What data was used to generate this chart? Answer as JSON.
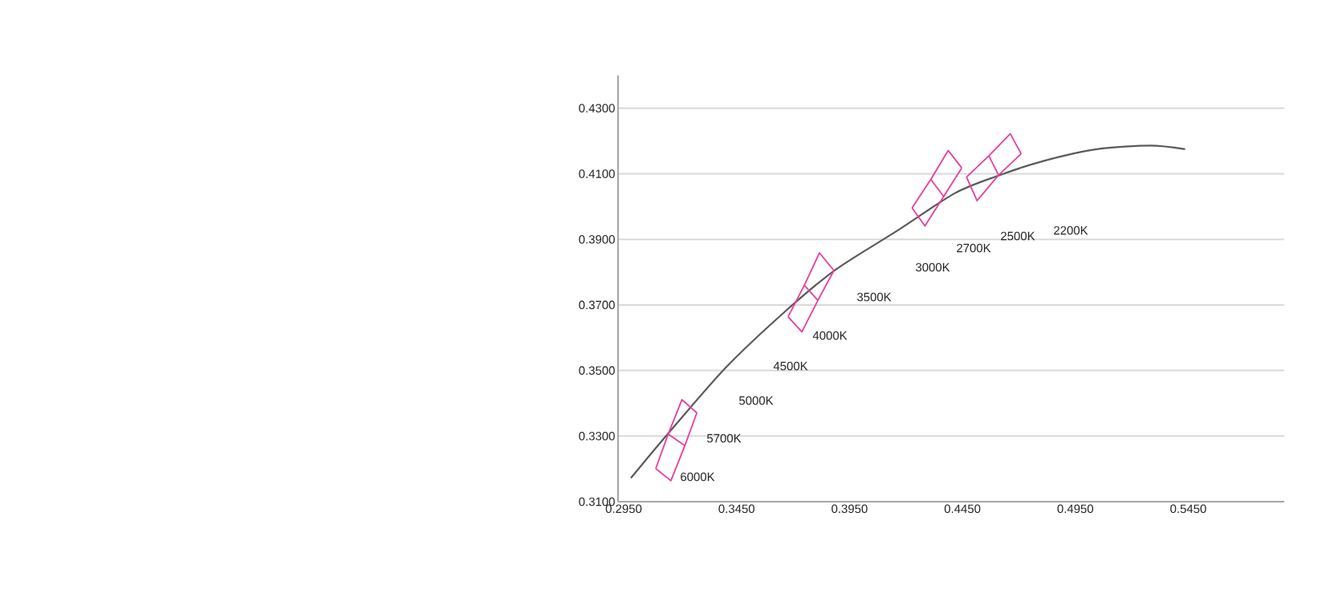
{
  "chart_data": {
    "type": "line",
    "xlim": [
      0.2925,
      0.5875
    ],
    "ylim": [
      0.31,
      0.44
    ],
    "xticks": [
      {
        "value": 0.295,
        "label": "0.2950"
      },
      {
        "value": 0.345,
        "label": "0.3450"
      },
      {
        "value": 0.395,
        "label": "0.3950"
      },
      {
        "value": 0.445,
        "label": "0.4450"
      },
      {
        "value": 0.495,
        "label": "0.4950"
      },
      {
        "value": 0.545,
        "label": "0.5450"
      }
    ],
    "yticks": [
      {
        "value": 0.31,
        "label": "0.3100"
      },
      {
        "value": 0.33,
        "label": "0.3300"
      },
      {
        "value": 0.35,
        "label": "0.3500"
      },
      {
        "value": 0.37,
        "label": "0.3700"
      },
      {
        "value": 0.39,
        "label": "0.3900"
      },
      {
        "value": 0.41,
        "label": "0.4100"
      },
      {
        "value": 0.43,
        "label": "0.4300"
      }
    ],
    "grid": "y",
    "marker": "none",
    "line_style": "solid",
    "series": [
      {
        "color": "#5a5a5a",
        "x": [
          0.2982,
          0.3147,
          0.3401,
          0.3655,
          0.3883,
          0.4163,
          0.4417,
          0.4607,
          0.4808,
          0.5045,
          0.5282,
          0.5436
        ],
        "values": [
          0.3172,
          0.3308,
          0.3508,
          0.3674,
          0.3805,
          0.3927,
          0.4041,
          0.4094,
          0.4139,
          0.4175,
          0.4186,
          0.4175
        ]
      },
      {
        "color": "#e83e9c",
        "x": [
          0.3092,
          0.3147,
          0.3208,
          0.3274
        ],
        "values": [
          0.3201,
          0.3306,
          0.3411,
          0.3371
        ]
      },
      {
        "color": "#e83e9c",
        "x": [
          0.3092,
          0.3159,
          0.3221,
          0.3274
        ],
        "values": [
          0.3201,
          0.3164,
          0.3271,
          0.3371
        ]
      },
      {
        "color": "#e83e9c",
        "x": [
          0.3147,
          0.3221
        ],
        "values": [
          0.3306,
          0.3271
        ]
      },
      {
        "color": "#e83e9c",
        "x": [
          0.3678,
          0.375,
          0.3817,
          0.3881
        ],
        "values": [
          0.3664,
          0.376,
          0.3859,
          0.3805
        ]
      },
      {
        "color": "#e83e9c",
        "x": [
          0.3678,
          0.3739,
          0.381,
          0.3881
        ],
        "values": [
          0.3664,
          0.3618,
          0.3714,
          0.3805
        ]
      },
      {
        "color": "#e83e9c",
        "x": [
          0.375,
          0.381
        ],
        "values": [
          0.376,
          0.3714
        ]
      },
      {
        "color": "#e83e9c",
        "x": [
          0.4227,
          0.431,
          0.4387,
          0.4447
        ],
        "values": [
          0.3996,
          0.4083,
          0.4171,
          0.4118
        ]
      },
      {
        "color": "#e83e9c",
        "x": [
          0.4227,
          0.4284,
          0.4367,
          0.4447
        ],
        "values": [
          0.3996,
          0.3941,
          0.4031,
          0.4118
        ]
      },
      {
        "color": "#e83e9c",
        "x": [
          0.431,
          0.4367
        ],
        "values": [
          0.4083,
          0.4031
        ]
      },
      {
        "color": "#e83e9c",
        "x": [
          0.4468,
          0.4567,
          0.4662,
          0.471
        ],
        "values": [
          0.409,
          0.4155,
          0.4222,
          0.4161
        ]
      },
      {
        "color": "#e83e9c",
        "x": [
          0.4468,
          0.4515,
          0.461,
          0.471
        ],
        "values": [
          0.409,
          0.4018,
          0.4096,
          0.4161
        ]
      },
      {
        "color": "#e83e9c",
        "x": [
          0.4567,
          0.461
        ],
        "values": [
          0.4155,
          0.4096
        ]
      }
    ],
    "annotations": [
      "6000K",
      "5700K",
      "5000K",
      "4500K",
      "4000K",
      "3500K",
      "3000K",
      "2700K",
      "2500K",
      "2200K"
    ]
  }
}
